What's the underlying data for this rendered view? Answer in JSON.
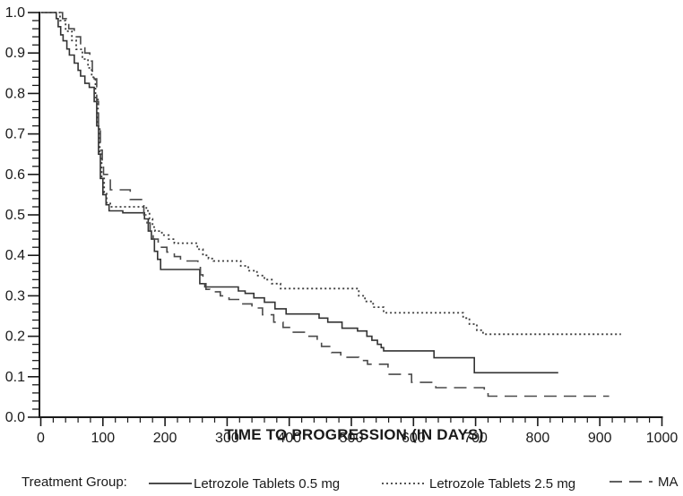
{
  "figure": {
    "legend_title": "Treatment Group:"
  },
  "chart_data": {
    "type": "line",
    "subtype": "kaplan-meier-step",
    "title": "",
    "xlabel": "TIME TO PROGRESSION (IN DAYS)",
    "ylabel": "",
    "xlim": [
      0,
      1000
    ],
    "ylim": [
      0.0,
      1.0
    ],
    "x_ticks": [
      0,
      100,
      200,
      300,
      400,
      500,
      600,
      700,
      800,
      900,
      1000
    ],
    "x_tick_labels": [
      "0",
      "100",
      "200",
      "300",
      "400",
      "500",
      "600",
      "700",
      "800",
      "900",
      "1000"
    ],
    "x_minor_step": 20,
    "y_ticks": [
      0.0,
      0.1,
      0.2,
      0.3,
      0.4,
      0.5,
      0.6,
      0.7,
      0.8,
      0.9,
      1.0
    ],
    "y_tick_labels": [
      "0.0",
      "0.1",
      "0.2",
      "0.3",
      "0.4",
      "0.5",
      "0.6",
      "0.7",
      "0.8",
      "0.9",
      "1.0"
    ],
    "y_minor_step": 0.02,
    "grid": false,
    "legend_position": "bottom",
    "axis_color": "#1a1a1a",
    "series": [
      {
        "name": "Letrozole Tablets 0.5 mg",
        "style": "solid",
        "dash": "",
        "color": "#333333",
        "points": [
          [
            0,
            1.0
          ],
          [
            25,
            0.985
          ],
          [
            28,
            0.965
          ],
          [
            32,
            0.945
          ],
          [
            36,
            0.93
          ],
          [
            42,
            0.91
          ],
          [
            46,
            0.895
          ],
          [
            54,
            0.875
          ],
          [
            60,
            0.857
          ],
          [
            64,
            0.843
          ],
          [
            71,
            0.825
          ],
          [
            78,
            0.815
          ],
          [
            86,
            0.78
          ],
          [
            90,
            0.72
          ],
          [
            93,
            0.65
          ],
          [
            96,
            0.59
          ],
          [
            100,
            0.55
          ],
          [
            105,
            0.525
          ],
          [
            110,
            0.51
          ],
          [
            132,
            0.505
          ],
          [
            167,
            0.49
          ],
          [
            173,
            0.46
          ],
          [
            178,
            0.44
          ],
          [
            183,
            0.41
          ],
          [
            188,
            0.39
          ],
          [
            193,
            0.365
          ],
          [
            256,
            0.33
          ],
          [
            264,
            0.322
          ],
          [
            318,
            0.312
          ],
          [
            329,
            0.306
          ],
          [
            343,
            0.295
          ],
          [
            360,
            0.284
          ],
          [
            377,
            0.268
          ],
          [
            395,
            0.255
          ],
          [
            448,
            0.245
          ],
          [
            462,
            0.235
          ],
          [
            485,
            0.22
          ],
          [
            510,
            0.213
          ],
          [
            525,
            0.2
          ],
          [
            533,
            0.19
          ],
          [
            542,
            0.18
          ],
          [
            548,
            0.172
          ],
          [
            552,
            0.164
          ],
          [
            633,
            0.147
          ],
          [
            698,
            0.11
          ],
          [
            833,
            0.11
          ]
        ]
      },
      {
        "name": "Letrozole Tablets 2.5 mg",
        "style": "dotted",
        "dash": "2 3",
        "color": "#3d3d3d",
        "points": [
          [
            0,
            1.0
          ],
          [
            31,
            0.98
          ],
          [
            40,
            0.954
          ],
          [
            50,
            0.931
          ],
          [
            57,
            0.909
          ],
          [
            67,
            0.885
          ],
          [
            76,
            0.863
          ],
          [
            82,
            0.84
          ],
          [
            88,
            0.79
          ],
          [
            92,
            0.72
          ],
          [
            95,
            0.65
          ],
          [
            98,
            0.59
          ],
          [
            102,
            0.555
          ],
          [
            106,
            0.53
          ],
          [
            112,
            0.52
          ],
          [
            170,
            0.51
          ],
          [
            175,
            0.49
          ],
          [
            180,
            0.47
          ],
          [
            184,
            0.46
          ],
          [
            195,
            0.45
          ],
          [
            206,
            0.44
          ],
          [
            215,
            0.43
          ],
          [
            252,
            0.415
          ],
          [
            261,
            0.4
          ],
          [
            270,
            0.392
          ],
          [
            278,
            0.386
          ],
          [
            322,
            0.374
          ],
          [
            334,
            0.362
          ],
          [
            348,
            0.35
          ],
          [
            360,
            0.34
          ],
          [
            372,
            0.33
          ],
          [
            386,
            0.318
          ],
          [
            512,
            0.3
          ],
          [
            522,
            0.286
          ],
          [
            535,
            0.272
          ],
          [
            552,
            0.258
          ],
          [
            680,
            0.245
          ],
          [
            690,
            0.23
          ],
          [
            702,
            0.215
          ],
          [
            712,
            0.205
          ],
          [
            934,
            0.205
          ]
        ]
      },
      {
        "name": "MA",
        "style": "long-dash",
        "dash": "14 8",
        "color": "#4a4a4a",
        "points": [
          [
            0,
            1.0
          ],
          [
            35,
            0.985
          ],
          [
            45,
            0.96
          ],
          [
            54,
            0.94
          ],
          [
            64,
            0.92
          ],
          [
            71,
            0.9
          ],
          [
            79,
            0.88
          ],
          [
            83,
            0.855
          ],
          [
            86,
            0.836
          ],
          [
            90,
            0.78
          ],
          [
            93,
            0.71
          ],
          [
            96,
            0.66
          ],
          [
            99,
            0.63
          ],
          [
            101,
            0.6
          ],
          [
            112,
            0.562
          ],
          [
            144,
            0.538
          ],
          [
            166,
            0.5
          ],
          [
            171,
            0.48
          ],
          [
            176,
            0.46
          ],
          [
            181,
            0.44
          ],
          [
            189,
            0.42
          ],
          [
            203,
            0.408
          ],
          [
            215,
            0.397
          ],
          [
            225,
            0.386
          ],
          [
            253,
            0.37
          ],
          [
            257,
            0.352
          ],
          [
            261,
            0.33
          ],
          [
            266,
            0.316
          ],
          [
            272,
            0.31
          ],
          [
            289,
            0.3
          ],
          [
            303,
            0.291
          ],
          [
            320,
            0.28
          ],
          [
            340,
            0.27
          ],
          [
            357,
            0.253
          ],
          [
            375,
            0.235
          ],
          [
            390,
            0.222
          ],
          [
            405,
            0.21
          ],
          [
            428,
            0.2
          ],
          [
            445,
            0.19
          ],
          [
            452,
            0.175
          ],
          [
            468,
            0.16
          ],
          [
            483,
            0.148
          ],
          [
            512,
            0.14
          ],
          [
            526,
            0.131
          ],
          [
            559,
            0.106
          ],
          [
            597,
            0.086
          ],
          [
            636,
            0.073
          ],
          [
            714,
            0.062
          ],
          [
            720,
            0.052
          ],
          [
            915,
            0.052
          ]
        ]
      }
    ]
  }
}
